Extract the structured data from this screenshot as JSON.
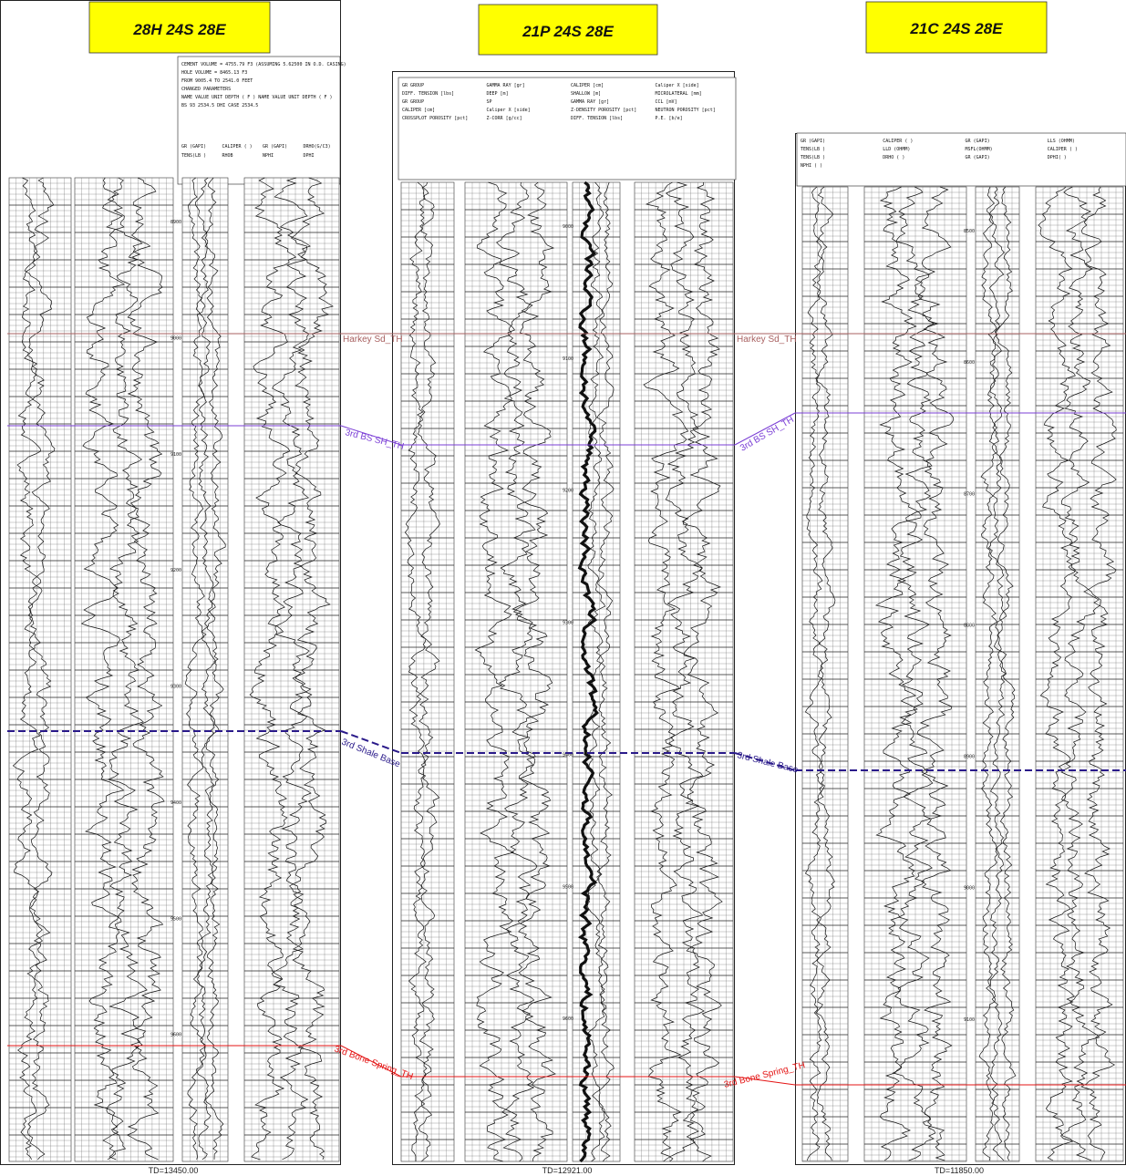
{
  "wells": [
    {
      "id": "w1",
      "title": "28H 24S 28E",
      "td_label": "TD=13450.00",
      "header_lines": [
        "CEMENT VOLUME = 4755.79 F3  (ASSUMING 5.62500 IN  O.D. CASING)",
        "HOLE VOLUME =  8465.13 F3",
        "FROM  9005.4 TO  2541.0 FEET",
        "CHANGED PARAMETERS",
        "NAME  VALUE   UNIT  DEPTH ( F )   NAME  VALUE   UNIT  DEPTH ( F )",
        "BS   93        2534.5         DHI  CASE        2534.5"
      ],
      "track_headers": [
        "GR  (GAPI)",
        "CALIPER  ( )",
        "GR  (GAPI)",
        "DRHO(G/C3)",
        "TENS(LB )",
        "RHOB",
        "NPHI",
        "DPHI"
      ],
      "depths": [
        "8900",
        "9000",
        "9100",
        "9200",
        "9300",
        "9400",
        "9500",
        "9600"
      ]
    },
    {
      "id": "w2",
      "title": "21P 24S 28E",
      "td_label": "TD=12921.00",
      "header_lines": [
        "GR GROUP",
        "GAMMA RAY [gr]",
        "CALIPER [cm]",
        "Caliper X [side]",
        "DIFF. TENSION [lbs]",
        "DEEP [m]",
        "SHALLOW [m]",
        "MICROLATERAL [mm]",
        "GR GROUP",
        "SP",
        "GAMMA RAY [gr]",
        "CCL [mV]",
        "CALIPER [cm]",
        "Caliper X [side]",
        "Z-DENSITY POROSITY [pct]",
        "NEUTRON POROSITY [pct]",
        "CROSSPLOT POROSITY [pct]",
        "Z-CORR [g/cc]",
        "DIFF. TENSION [lbs]",
        "P.E. [b/e]"
      ],
      "depths": [
        "9000",
        "9100",
        "9200",
        "9300",
        "9400",
        "9500",
        "9600"
      ]
    },
    {
      "id": "w3",
      "title": "21C 24S 28E",
      "td_label": "TD=11850.00",
      "header_lines": [
        "GR  (GAPI)",
        "CALIPER ( )",
        "GR  (GAPI)",
        "LLS (OHMM)",
        "TENS(LB )",
        "LLD (OHMM)",
        "MSFL(OHMM)",
        "CALIPER ( )",
        "TENS(LB )",
        "DRHO ( )",
        "GR  (GAPI)",
        "DPHI( )",
        "NPHI ( )"
      ],
      "depths": [
        "8500",
        "8600",
        "8700",
        "8800",
        "8900",
        "9000",
        "9100"
      ]
    }
  ],
  "markers": [
    {
      "id": "harkey",
      "label": "Harkey Sd_TH",
      "color": "#a86060"
    },
    {
      "id": "bssh",
      "label": "3rd BS SH_TH",
      "color": "#7b3fd6"
    },
    {
      "id": "shalebase",
      "label": "3rd Shale Base",
      "color": "#2a1a8a"
    },
    {
      "id": "bonespring",
      "label": "3rd Bone Spring_TH",
      "color": "#e41414"
    }
  ],
  "colors": {
    "title_box": "#ffff00",
    "log_ink": "#111111",
    "grid": "#555555"
  }
}
